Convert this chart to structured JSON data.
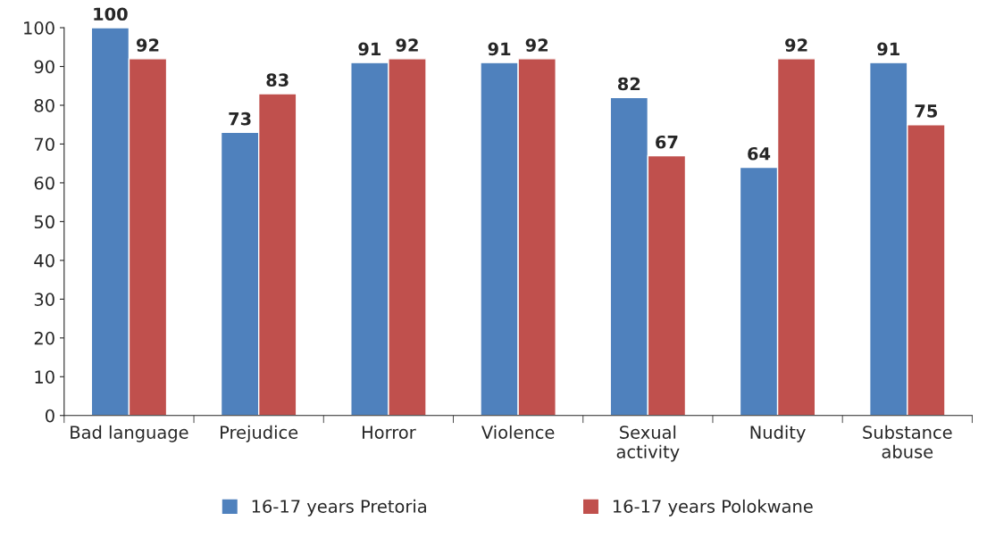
{
  "chart_data": {
    "type": "bar",
    "categories": [
      "Bad language",
      "Prejudice",
      "Horror",
      "Violence",
      "Sexual\nactivity",
      "Nudity",
      "Substance\nabuse"
    ],
    "series": [
      {
        "name": "16-17 years Pretoria",
        "color": "#4f81bd",
        "values": [
          100,
          73,
          91,
          91,
          82,
          64,
          91
        ]
      },
      {
        "name": "16-17 years Polokwane",
        "color": "#c0504d",
        "values": [
          92,
          83,
          92,
          92,
          67,
          92,
          75
        ]
      }
    ],
    "ylim": [
      0,
      100
    ],
    "yticks": [
      0,
      10,
      20,
      30,
      40,
      50,
      60,
      70,
      80,
      90,
      100
    ],
    "data_labels": true,
    "grid": false,
    "legend": "bottom"
  }
}
